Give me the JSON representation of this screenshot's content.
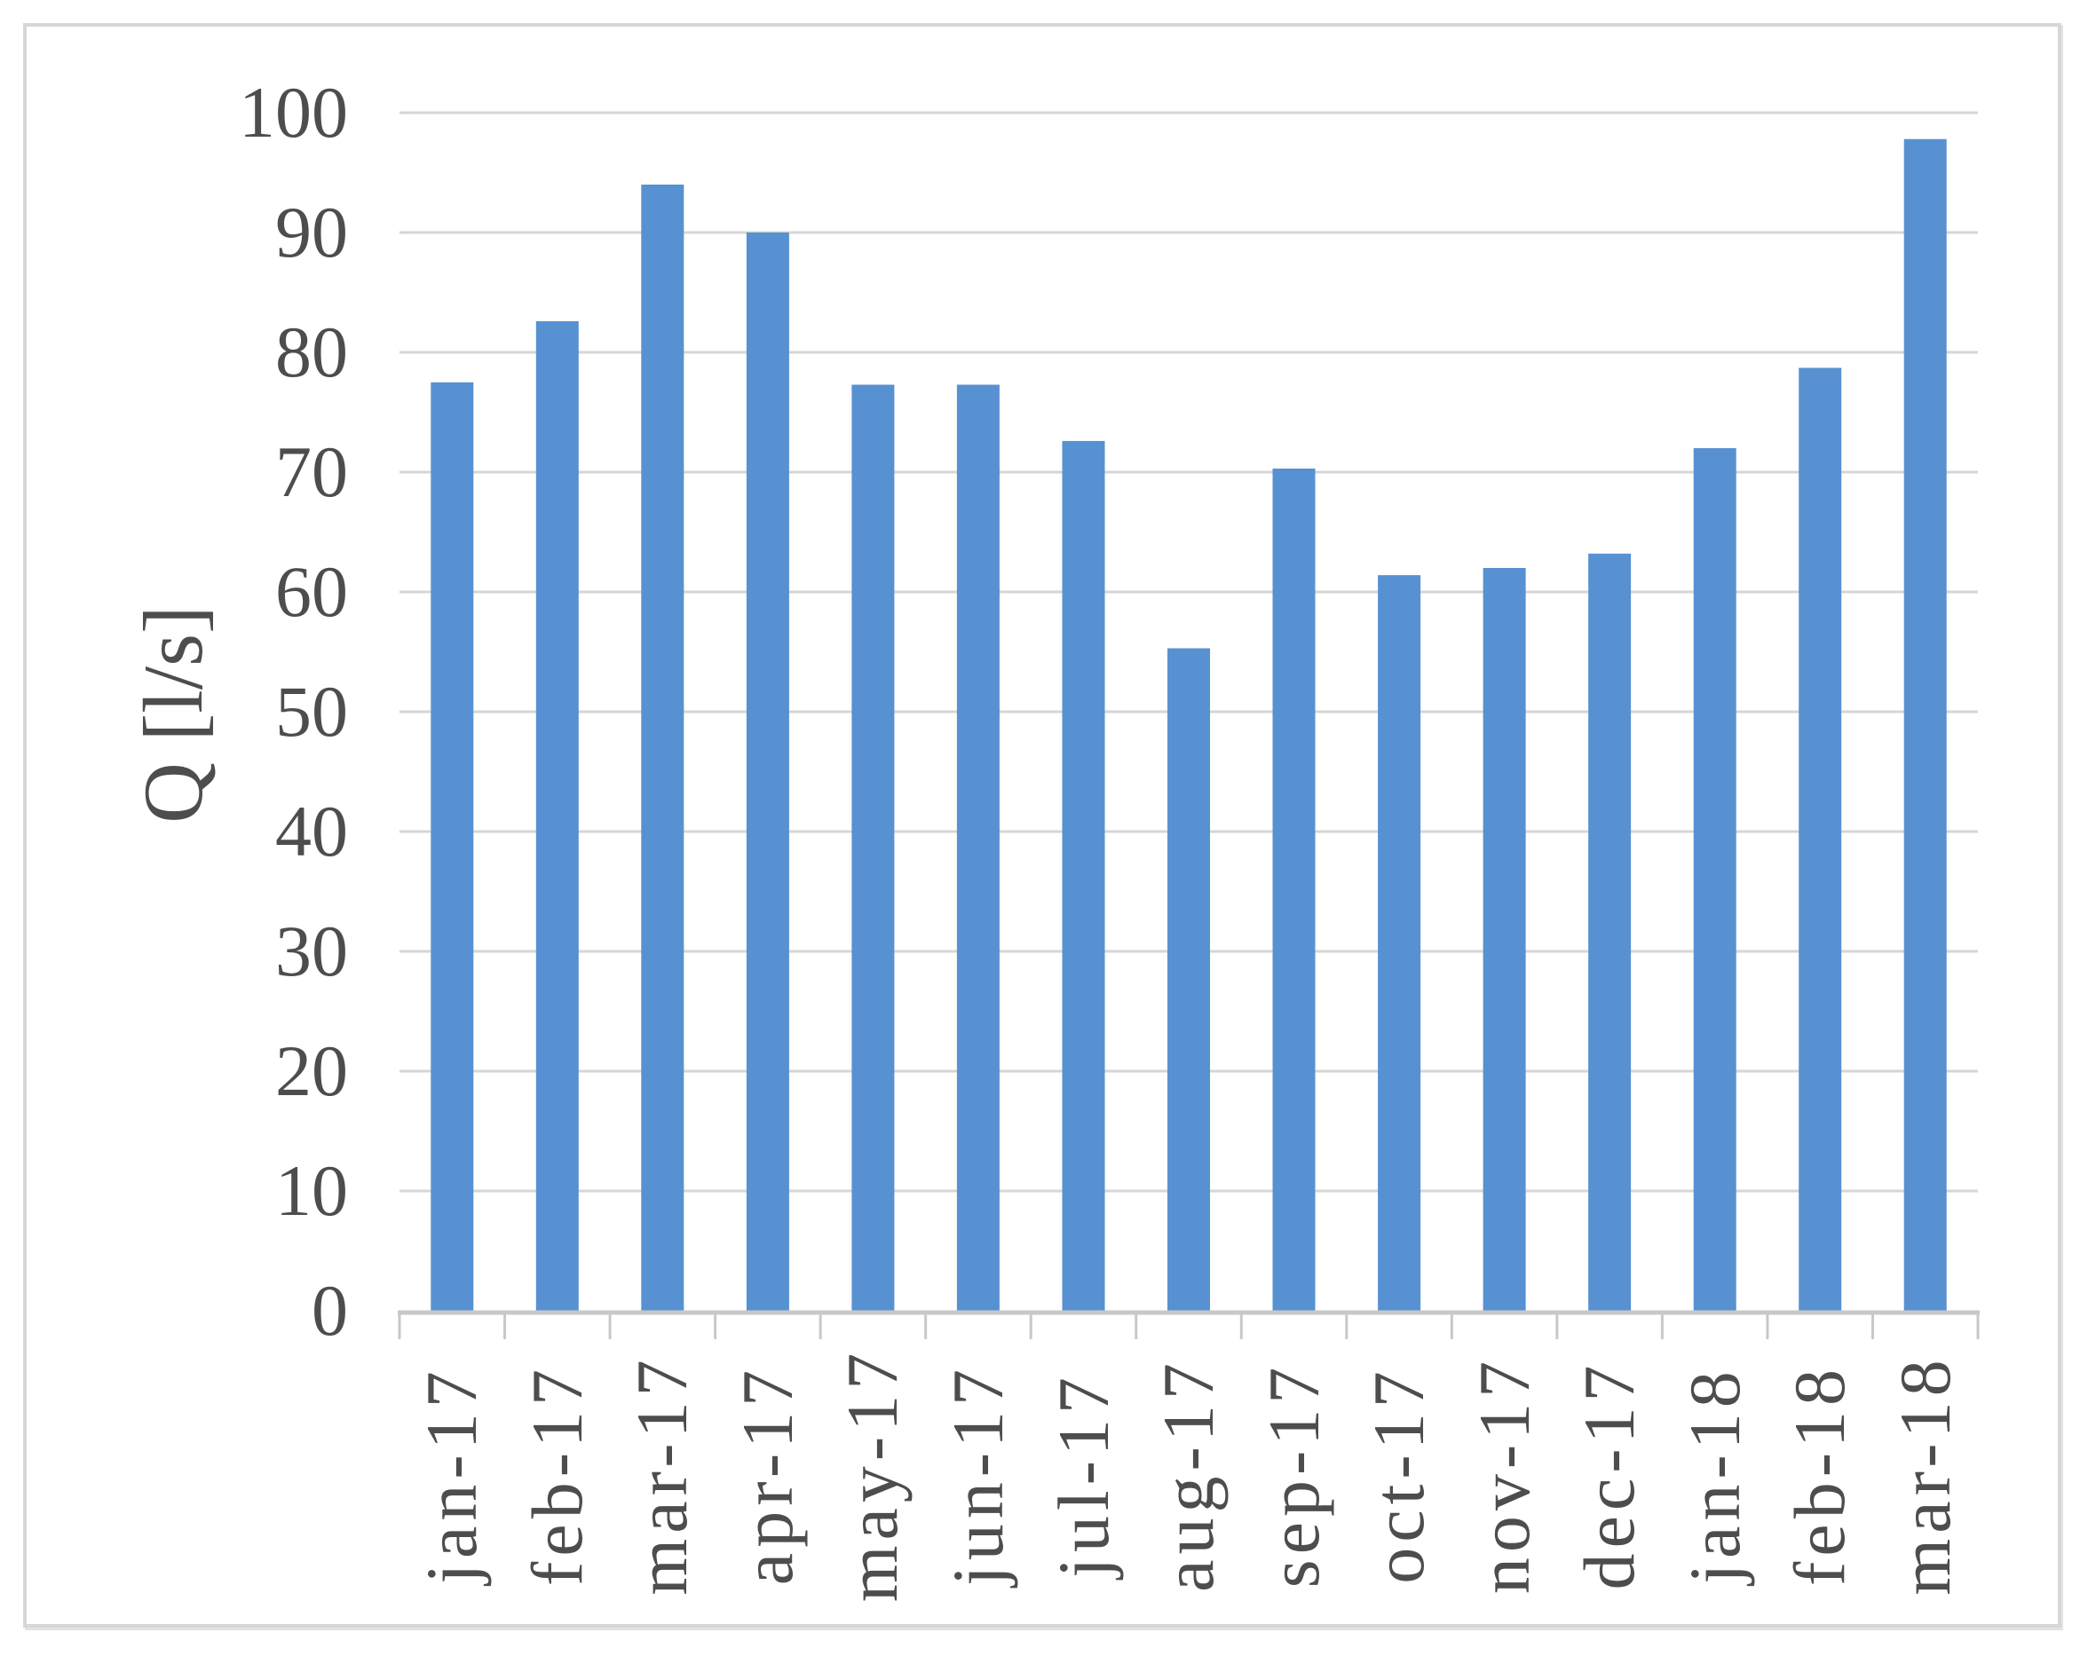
{
  "chart_data": {
    "type": "bar",
    "title": "",
    "xlabel": "",
    "ylabel": "Q [l/s]",
    "categories": [
      "jan-17",
      "feb-17",
      "mar-17",
      "apr-17",
      "may-17",
      "jun-17",
      "jul-17",
      "aug-17",
      "sep-17",
      "oct-17",
      "nov-17",
      "dec-17",
      "jan-18",
      "feb-18",
      "mar-18"
    ],
    "values": [
      77.5,
      82.6,
      94.0,
      90.0,
      77.3,
      77.3,
      72.6,
      55.3,
      70.3,
      61.4,
      62.0,
      63.2,
      72.0,
      78.7,
      97.8
    ],
    "ylim": [
      0,
      100
    ],
    "yticks": [
      0,
      10,
      20,
      30,
      40,
      50,
      60,
      70,
      80,
      90,
      100
    ],
    "grid": "horizontal-on",
    "legend": "none",
    "colors": {
      "bar": "#5791D1",
      "gridline": "#d6d6d6",
      "axis_line": "#c8c8c8",
      "tick_mark": "#c8c8c8",
      "label_text": "#4d4d4d",
      "frame_border": "#d7d7d7",
      "background": "#ffffff"
    }
  }
}
